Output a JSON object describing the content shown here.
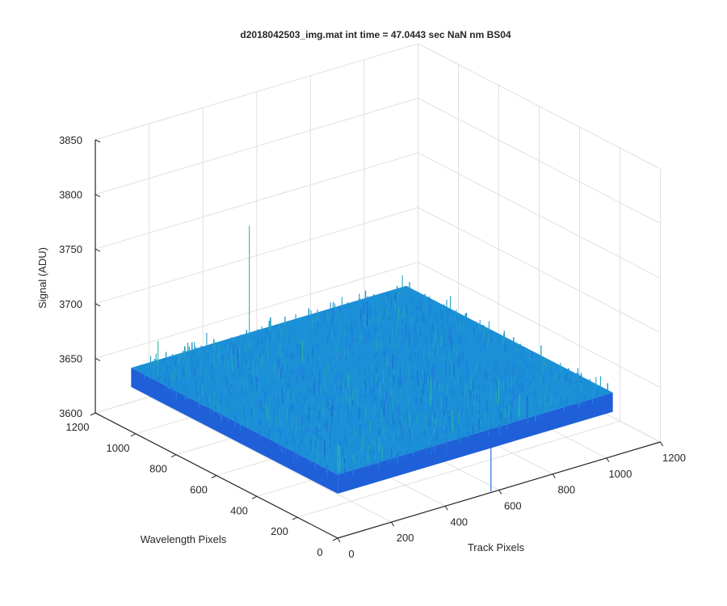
{
  "chart_data": {
    "type": "surface",
    "title": "d2018042503_img.mat int time = 47.0443 sec  NaN nm BS04",
    "xlabel": "Track Pixels",
    "ylabel": "Wavelength Pixels",
    "zlabel": "Signal (ADU)",
    "xlim": [
      0,
      1200
    ],
    "ylim": [
      0,
      1200
    ],
    "zlim": [
      3600,
      3850
    ],
    "xticks": [
      "0",
      "200",
      "400",
      "600",
      "800",
      "1000",
      "1200"
    ],
    "yticks": [
      "0",
      "200",
      "400",
      "600",
      "800",
      "1000",
      "1200"
    ],
    "zticks": [
      "3600",
      "3650",
      "3700",
      "3750",
      "3800",
      "3850"
    ],
    "grid": true,
    "colormap": "parula",
    "surface": {
      "x_range": [
        1,
        1024
      ],
      "y_range": [
        1,
        1024
      ],
      "mean": 3658,
      "noise_std": 7,
      "max_spike": 3758,
      "min_spike": 3595
    },
    "colors": {
      "low": "#1f5fd8",
      "mid": "#1b8fd8",
      "high": "#2fb5a8",
      "axis": "#262626",
      "grid": "#e0e0e0"
    }
  }
}
